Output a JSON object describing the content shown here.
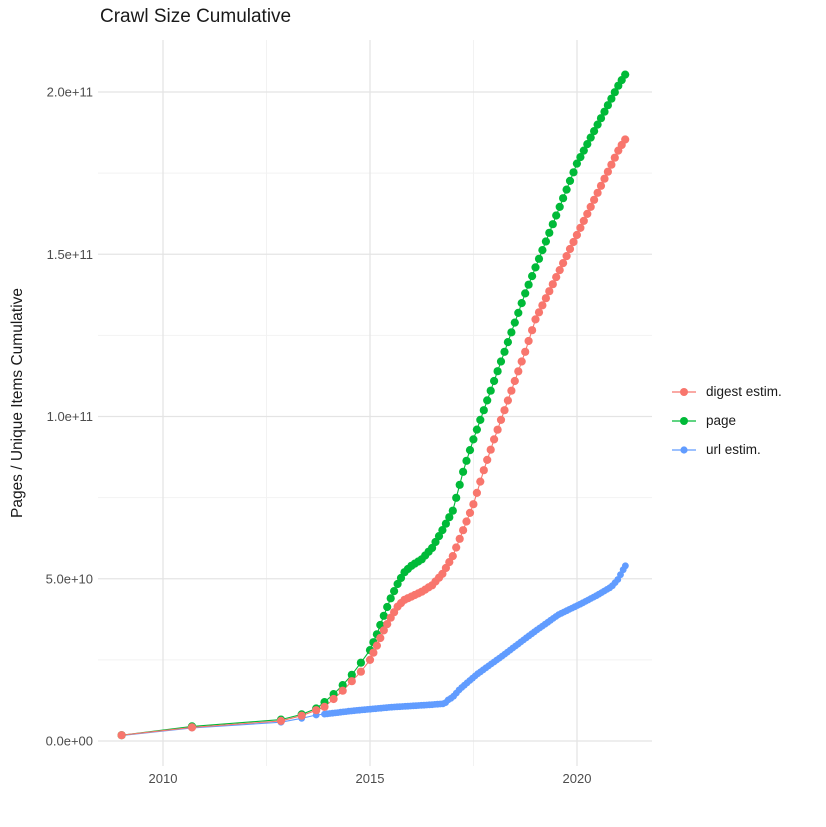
{
  "title": "Crawl Size Cumulative",
  "y_axis_title": "Pages / Unique Items Cumulative",
  "chart_data": {
    "type": "scatter",
    "title": "Crawl Size Cumulative",
    "xlabel": "",
    "ylabel": "Pages / Unique Items Cumulative",
    "grid": true,
    "legend_position": "right",
    "xlim": [
      2008.6,
      2021.8
    ],
    "ylim": [
      0,
      215000000000
    ],
    "x_ticks": {
      "labels": [
        "2010",
        "2015",
        "2020"
      ],
      "values": [
        2010,
        2015,
        2020
      ]
    },
    "x_minor_gridlines": [
      2012.5,
      2017.5
    ],
    "y_ticks": {
      "labels": [
        "0.0e+00",
        "5.0e+10",
        "1.0e+11",
        "1.5e+11",
        "2.0e+11"
      ],
      "values": [
        0,
        50000000000.0,
        100000000000.0,
        150000000000.0,
        200000000000.0
      ]
    },
    "y_minor_gridlines": [
      25000000000.0,
      75000000000.0,
      125000000000.0,
      175000000000.0
    ],
    "series": [
      {
        "name": "digest estim.",
        "color": "#F8766D",
        "points_sparse": [
          [
            2009.0,
            1800000000.0
          ],
          [
            2010.7,
            4200000000.0
          ],
          [
            2012.85,
            6200000000.0
          ],
          [
            2013.35,
            7800000000.0
          ],
          [
            2013.7,
            9500000000.0
          ]
        ],
        "curve_anchors": [
          [
            2013.9,
            10500000000.0
          ],
          [
            2014.17,
            13500000000.0
          ],
          [
            2014.4,
            16200000000.0
          ],
          [
            2014.6,
            19000000000.0
          ],
          [
            2014.83,
            22000000000.0
          ],
          [
            2015.0,
            25000000000.0
          ],
          [
            2015.17,
            29500000000.0
          ],
          [
            2015.33,
            34000000000.0
          ],
          [
            2015.5,
            38000000000.0
          ],
          [
            2015.67,
            41500000000.0
          ],
          [
            2015.83,
            43500000000.0
          ],
          [
            2016.0,
            44500000000.0
          ],
          [
            2016.25,
            46000000000.0
          ],
          [
            2016.5,
            48000000000.0
          ],
          [
            2016.75,
            51500000000.0
          ],
          [
            2017.0,
            57000000000.0
          ],
          [
            2017.25,
            65000000000.0
          ],
          [
            2017.5,
            73000000000.0
          ],
          [
            2017.75,
            83500000000.0
          ],
          [
            2018.0,
            93000000000.0
          ],
          [
            2018.25,
            102000000000.0
          ],
          [
            2018.5,
            111000000000.0
          ],
          [
            2018.75,
            120000000000.0
          ],
          [
            2019.0,
            130000000000.0
          ],
          [
            2019.5,
            143000000000.0
          ],
          [
            2020.0,
            156000000000.0
          ],
          [
            2020.5,
            169000000000.0
          ],
          [
            2021.0,
            182000000000.0
          ],
          [
            2021.17,
            185500000000.0
          ]
        ],
        "dot_segments": [
          {
            "from": 2013.9,
            "to": 2015.0,
            "step": 0.22
          },
          {
            "from": 2015.083,
            "to": 2021.17,
            "step": 0.0833
          }
        ]
      },
      {
        "name": "page",
        "color": "#00BA38",
        "points_sparse": [
          [
            2009.0,
            1800000000.0
          ],
          [
            2010.7,
            4500000000.0
          ],
          [
            2012.85,
            6600000000.0
          ],
          [
            2013.35,
            8200000000.0
          ],
          [
            2013.7,
            10000000000.0
          ]
        ],
        "curve_anchors": [
          [
            2013.9,
            12000000000.0
          ],
          [
            2014.17,
            15000000000.0
          ],
          [
            2014.4,
            18000000000.0
          ],
          [
            2014.6,
            21000000000.0
          ],
          [
            2014.83,
            25000000000.0
          ],
          [
            2015.0,
            28000000000.0
          ],
          [
            2015.17,
            33000000000.0
          ],
          [
            2015.33,
            38500000000.0
          ],
          [
            2015.5,
            44000000000.0
          ],
          [
            2015.67,
            48500000000.0
          ],
          [
            2015.83,
            52000000000.0
          ],
          [
            2016.0,
            54000000000.0
          ],
          [
            2016.25,
            56000000000.0
          ],
          [
            2016.5,
            59500000000.0
          ],
          [
            2016.75,
            65000000000.0
          ],
          [
            2017.0,
            71000000000.0
          ],
          [
            2017.26,
            83500000000.0
          ],
          [
            2017.5,
            93000000000.0
          ],
          [
            2017.75,
            102000000000.0
          ],
          [
            2018.0,
            111000000000.0
          ],
          [
            2018.25,
            120000000000.0
          ],
          [
            2018.5,
            129000000000.0
          ],
          [
            2018.75,
            138000000000.0
          ],
          [
            2019.0,
            146000000000.0
          ],
          [
            2019.5,
            162000000000.0
          ],
          [
            2020.0,
            178000000000.0
          ],
          [
            2020.5,
            190000000000.0
          ],
          [
            2021.0,
            202000000000.0
          ],
          [
            2021.17,
            205500000000.0
          ]
        ],
        "dot_segments": [
          {
            "from": 2013.9,
            "to": 2015.0,
            "step": 0.22
          },
          {
            "from": 2015.083,
            "to": 2021.17,
            "step": 0.0833
          }
        ]
      },
      {
        "name": "url estim.",
        "color": "#619CFF",
        "points_sparse": [
          [
            2009.0,
            1700000000.0
          ],
          [
            2010.7,
            4000000000.0
          ],
          [
            2012.85,
            5800000000.0
          ],
          [
            2013.35,
            7000000000.0
          ],
          [
            2013.7,
            8000000000.0
          ]
        ],
        "curve_anchors": [
          [
            2013.9,
            8300000000.0
          ],
          [
            2014.25,
            8800000000.0
          ],
          [
            2014.5,
            9200000000.0
          ],
          [
            2015.0,
            9800000000.0
          ],
          [
            2015.5,
            10400000000.0
          ],
          [
            2016.0,
            10800000000.0
          ],
          [
            2016.5,
            11200000000.0
          ],
          [
            2016.8,
            11500000000.0
          ],
          [
            2016.88,
            12600000000.0
          ],
          [
            2017.0,
            13500000000.0
          ],
          [
            2017.17,
            16000000000.0
          ],
          [
            2017.58,
            20500000000.0
          ],
          [
            2018.28,
            27000000000.0
          ],
          [
            2018.9,
            33000000000.0
          ],
          [
            2019.56,
            39000000000.0
          ],
          [
            2020.05,
            42000000000.0
          ],
          [
            2020.5,
            45000000000.0
          ],
          [
            2020.83,
            47500000000.0
          ],
          [
            2021.0,
            50000000000.0
          ],
          [
            2021.08,
            52000000000.0
          ],
          [
            2021.17,
            54000000000.0
          ]
        ],
        "dot_segments": [
          {
            "from": 2013.9,
            "to": 2021.17,
            "step": 0.065
          }
        ]
      }
    ]
  },
  "legend": {
    "items": [
      "digest estim.",
      "page",
      "url estim."
    ]
  }
}
